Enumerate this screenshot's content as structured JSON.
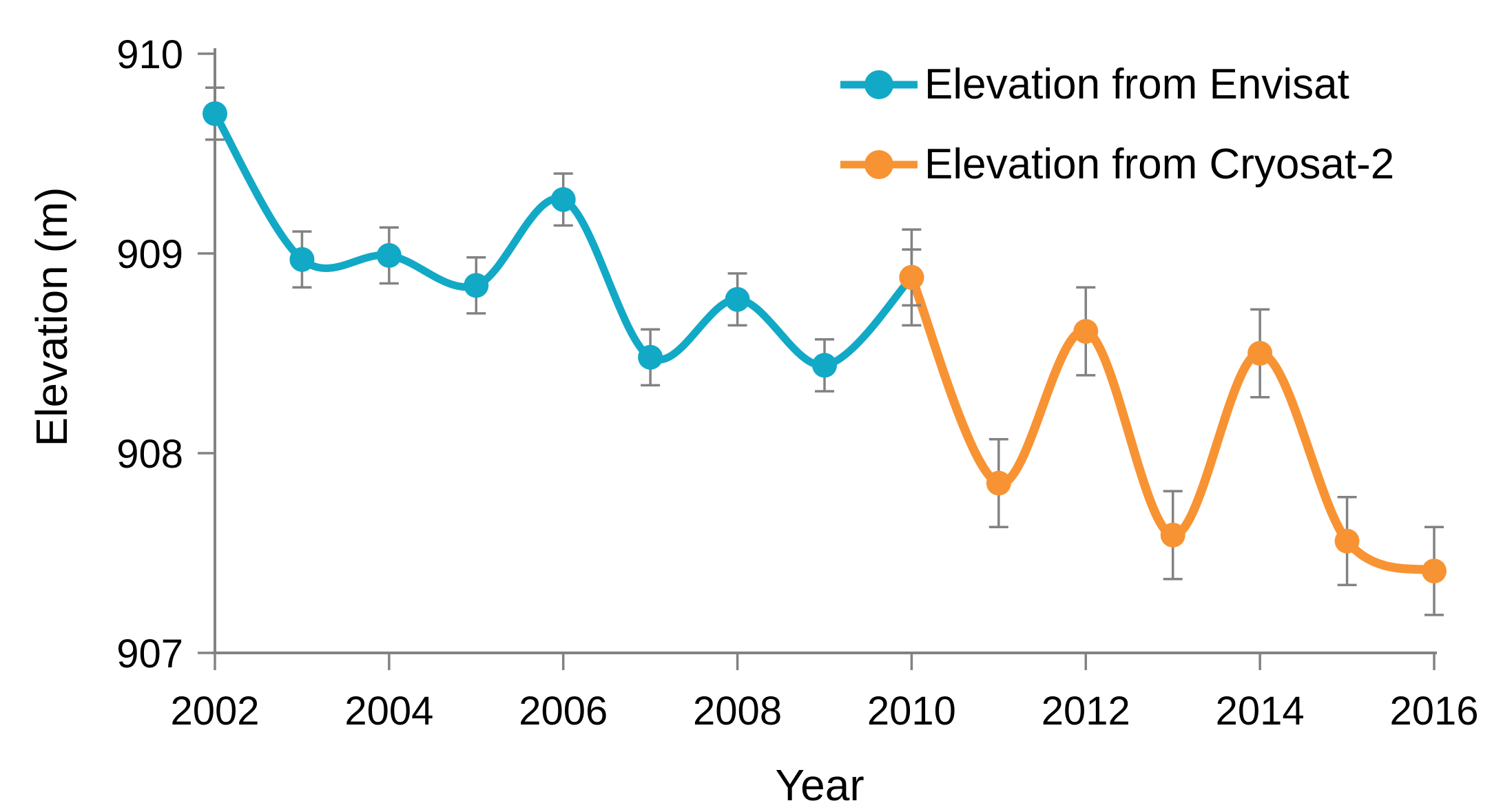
{
  "figure": {
    "x_axis_title": "Year",
    "y_axis_title": "Elevation (m)"
  },
  "chart_data": {
    "type": "line",
    "title": "",
    "xlabel": "Year",
    "ylabel": "Elevation (m)",
    "xlim": [
      2002,
      2016
    ],
    "ylim": [
      907,
      910
    ],
    "x_ticks": [
      2002,
      2004,
      2006,
      2008,
      2010,
      2012,
      2014,
      2016
    ],
    "y_ticks": [
      907,
      908,
      909,
      910
    ],
    "grid": false,
    "line_style": "smooth",
    "error_bars": true,
    "legend_position": "top-right",
    "colors": {
      "axis": "#828282",
      "error_bar": "#828282",
      "text": "#000000",
      "envisat": "#12a9c6",
      "cryosat2": "#f89333"
    },
    "series": [
      {
        "name": "Elevation from Envisat",
        "color": "#12a9c6",
        "x": [
          2002,
          2003,
          2004,
          2005,
          2006,
          2007,
          2008,
          2009,
          2010
        ],
        "y": [
          909.7,
          908.97,
          908.99,
          908.84,
          909.27,
          908.48,
          908.77,
          908.44,
          908.88
        ],
        "err": [
          0.13,
          0.14,
          0.14,
          0.14,
          0.13,
          0.14,
          0.13,
          0.13,
          0.14
        ]
      },
      {
        "name": "Elevation from Cryosat-2",
        "color": "#f89333",
        "x": [
          2010,
          2011,
          2012,
          2013,
          2014,
          2015,
          2016
        ],
        "y": [
          908.88,
          907.85,
          908.61,
          907.59,
          908.5,
          907.56,
          907.41
        ],
        "err": [
          0.24,
          0.22,
          0.22,
          0.22,
          0.22,
          0.22,
          0.22
        ]
      }
    ]
  }
}
